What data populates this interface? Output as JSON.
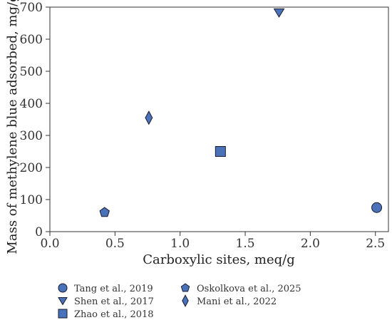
{
  "chart_data": {
    "type": "scatter",
    "title": "",
    "xlabel": "Carboxylic sites, meq/g",
    "ylabel": "Mass of methylene blue adsorbed, mg/g",
    "xlim": [
      0.0,
      2.6
    ],
    "ylim": [
      0,
      700
    ],
    "x_ticks": [
      "0.0",
      "0.5",
      "1.0",
      "1.5",
      "2.0",
      "2.5"
    ],
    "y_ticks": [
      "0",
      "100",
      "200",
      "300",
      "400",
      "500",
      "600",
      "700"
    ],
    "grid": false,
    "legend_position": "below",
    "marker_fill": "#4a72b8",
    "marker_edge": "#1a1a2e",
    "series": [
      {
        "name": "Tang et al., 2019",
        "marker": "circle",
        "x": [
          2.51
        ],
        "y": [
          75
        ]
      },
      {
        "name": "Shen et al., 2017",
        "marker": "triangle-down",
        "x": [
          1.76
        ],
        "y": [
          683
        ]
      },
      {
        "name": "Zhao et al., 2018",
        "marker": "square",
        "x": [
          1.31
        ],
        "y": [
          250
        ]
      },
      {
        "name": "Oskolkova et al., 2025",
        "marker": "pentagon",
        "x": [
          0.42
        ],
        "y": [
          60
        ]
      },
      {
        "name": "Mani et al., 2022",
        "marker": "diamond",
        "x": [
          0.76
        ],
        "y": [
          355
        ]
      }
    ]
  }
}
